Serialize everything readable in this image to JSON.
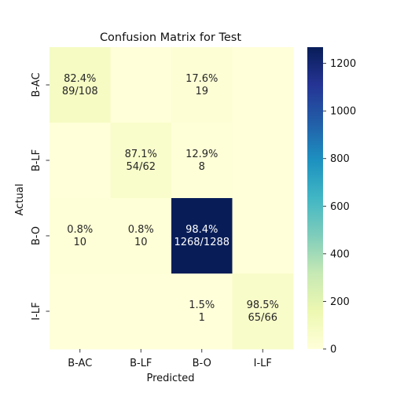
{
  "chart_data": {
    "type": "heatmap",
    "title": "Confusion Matrix for Test",
    "xlabel": "Predicted",
    "ylabel": "Actual",
    "x_categories": [
      "B-AC",
      "B-LF",
      "B-O",
      "I-LF"
    ],
    "y_categories": [
      "B-AC",
      "B-LF",
      "B-O",
      "I-LF"
    ],
    "values": [
      [
        89,
        0,
        19,
        0
      ],
      [
        0,
        54,
        8,
        0
      ],
      [
        10,
        10,
        1268,
        0
      ],
      [
        0,
        0,
        1,
        65
      ]
    ],
    "cell_labels": [
      [
        [
          "82.4%",
          "89/108"
        ],
        [
          "",
          ""
        ],
        [
          "17.6%",
          "19"
        ],
        [
          "",
          ""
        ]
      ],
      [
        [
          "",
          ""
        ],
        [
          "87.1%",
          "54/62"
        ],
        [
          "12.9%",
          "8"
        ],
        [
          "",
          ""
        ]
      ],
      [
        [
          "0.8%",
          "10"
        ],
        [
          "0.8%",
          "10"
        ],
        [
          "98.4%",
          "1268/1288"
        ],
        [
          "",
          ""
        ]
      ],
      [
        [
          "",
          ""
        ],
        [
          "",
          ""
        ],
        [
          "1.5%",
          "1"
        ],
        [
          "98.5%",
          "65/66"
        ]
      ]
    ],
    "colorbar": {
      "colormap": "YlGnBu",
      "range": [
        0,
        1268
      ],
      "ticks": [
        0,
        200,
        400,
        600,
        800,
        1000,
        1200
      ]
    }
  }
}
